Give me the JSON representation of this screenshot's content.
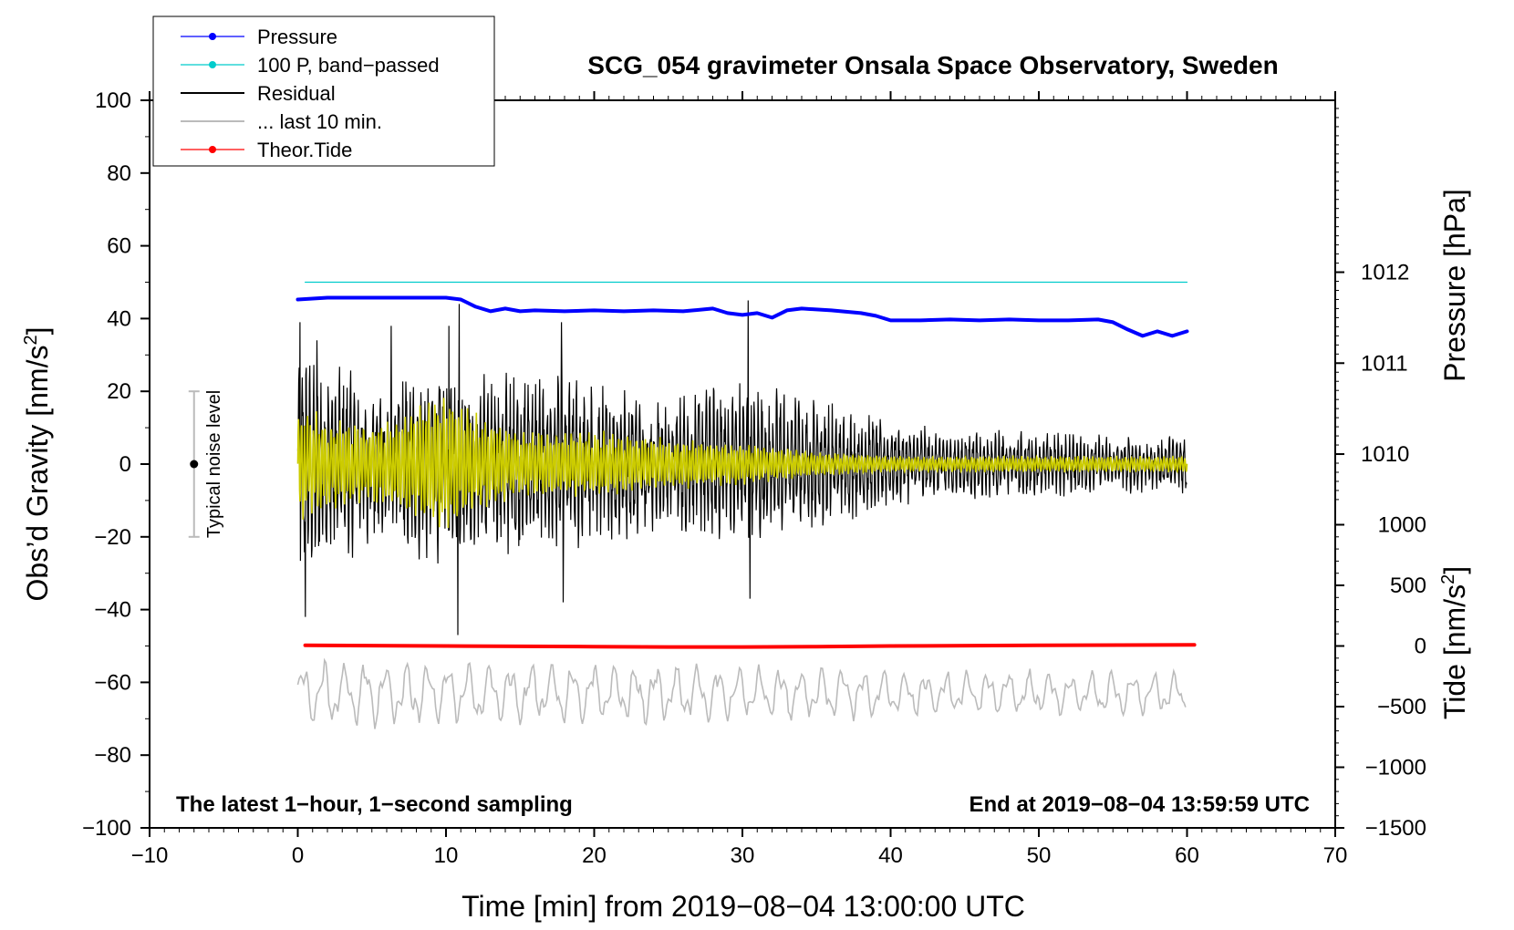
{
  "chart_data": {
    "type": "line",
    "title": "SCG_054 gravimeter Onsala Space Observatory, Sweden",
    "xlabel": "Time [min] from 2019−08−04 13:00:00 UTC",
    "ylabel_left_prefix": "Obs’d Gravity [nm/s",
    "ylabel_left_sup": "2",
    "ylabel_left_suffix": "]",
    "ylabel_right_pressure": "Pressure [hPa]",
    "ylabel_right_tide_prefix": "Tide [nm/s",
    "ylabel_right_tide_sup": "2",
    "ylabel_right_tide_suffix": "]",
    "xlim": [
      -10,
      70
    ],
    "ylim": [
      -100,
      100
    ],
    "pressure_ylim": [
      1005.89,
      1013.89
    ],
    "tide_ylim": [
      -1500,
      4500
    ],
    "x_ticks": [
      "−10",
      "0",
      "10",
      "20",
      "30",
      "40",
      "50",
      "60",
      "70"
    ],
    "x_tick_values": [
      -10,
      0,
      10,
      20,
      30,
      40,
      50,
      60,
      70
    ],
    "y_ticks": [
      "100",
      "80",
      "60",
      "40",
      "20",
      "0",
      "−20",
      "−40",
      "−60",
      "−80",
      "−100"
    ],
    "y_tick_values": [
      100,
      80,
      60,
      40,
      20,
      0,
      -20,
      -40,
      -60,
      -80,
      -100
    ],
    "pressure_ticks": [
      "1012",
      "1011",
      "1010"
    ],
    "pressure_tick_values": [
      1012,
      1011,
      1010
    ],
    "tide_ticks": [
      "1000",
      "500",
      "0",
      "−500",
      "−1000",
      "−1500"
    ],
    "tide_tick_values": [
      1000,
      500,
      0,
      -500,
      -1000,
      -1500
    ],
    "legend": [
      {
        "label": "Pressure",
        "color": "#0000ff",
        "marker": true
      },
      {
        "label": "100 P, band−passed",
        "color": "#00cccc",
        "marker": true
      },
      {
        "label": "Residual",
        "color": "#000000",
        "marker": false
      },
      {
        "label": "... last 10 min.",
        "color": "#bbbbbb",
        "marker": false
      },
      {
        "label": "Theor.Tide",
        "color": "#ff0000",
        "marker": true
      }
    ],
    "legend_position": "top-left",
    "note_left": "The latest 1−hour, 1−second sampling",
    "note_right": "End at 2019−08−04 13:59:59 UTC",
    "noise_level": {
      "label": "Typical noise level",
      "center": 0,
      "low": -20,
      "high": 20,
      "x": -7
    },
    "series": [
      {
        "name": "Pressure",
        "color": "#0000ff",
        "axis": "pressure",
        "x": [
          0,
          2,
          4,
          6,
          8,
          10,
          11,
          12,
          13,
          14,
          15,
          16,
          18,
          20,
          22,
          24,
          26,
          28,
          29,
          30,
          31,
          32,
          33,
          34,
          36,
          38,
          39,
          40,
          42,
          44,
          46,
          48,
          50,
          52,
          54,
          55,
          56,
          57,
          58,
          59,
          60
        ],
        "values": [
          1011.7,
          1011.72,
          1011.72,
          1011.72,
          1011.72,
          1011.72,
          1011.7,
          1011.62,
          1011.57,
          1011.6,
          1011.57,
          1011.58,
          1011.57,
          1011.58,
          1011.57,
          1011.58,
          1011.57,
          1011.6,
          1011.55,
          1011.53,
          1011.55,
          1011.5,
          1011.58,
          1011.6,
          1011.58,
          1011.55,
          1011.52,
          1011.47,
          1011.47,
          1011.48,
          1011.47,
          1011.48,
          1011.47,
          1011.47,
          1011.48,
          1011.45,
          1011.37,
          1011.3,
          1011.35,
          1011.3,
          1011.35
        ]
      },
      {
        "name": "100 P, band−passed",
        "color": "#00cccc",
        "axis": "gravity",
        "x": [
          0.5,
          60
        ],
        "values": [
          50,
          50
        ]
      },
      {
        "name": "Theor.Tide",
        "color": "#ff0000",
        "axis": "tide",
        "x": [
          0.5,
          10,
          20,
          25,
          30,
          35,
          40,
          50,
          60.5
        ],
        "values": [
          5,
          0,
          -5,
          -8,
          -8,
          -5,
          0,
          5,
          10
        ]
      }
    ],
    "residual_envelope": {
      "name": "Residual",
      "color": "#000000",
      "period_min": 0.25,
      "x": [
        0,
        5,
        10,
        15,
        20,
        25,
        30,
        35,
        40,
        45,
        50,
        55,
        60
      ],
      "amplitude": [
        26,
        20,
        24,
        22,
        20,
        16,
        20,
        16,
        10,
        8,
        8,
        7,
        7
      ]
    },
    "residual_spikes": [
      {
        "x": 0.15,
        "value": 39
      },
      {
        "x": 0.5,
        "value": -42
      },
      {
        "x": 1.3,
        "value": 34
      },
      {
        "x": 6.3,
        "value": 38
      },
      {
        "x": 10.2,
        "value": 38
      },
      {
        "x": 10.8,
        "value": -47
      },
      {
        "x": 10.9,
        "value": 44
      },
      {
        "x": 17.8,
        "value": 39
      },
      {
        "x": 17.9,
        "value": -38
      },
      {
        "x": 30.4,
        "value": 45
      },
      {
        "x": 30.5,
        "value": -37
      }
    ],
    "bandpassed_envelope": {
      "color": "#cccc00",
      "period_min": 0.2,
      "x": [
        0,
        3,
        6,
        10,
        12,
        15,
        20,
        25,
        30,
        35,
        40,
        50,
        60
      ],
      "amplitude": [
        14,
        10,
        10,
        17,
        12,
        8,
        8,
        6,
        5,
        3,
        2,
        2,
        2
      ]
    },
    "last10_envelope": {
      "name": "... last 10 min.",
      "color": "#bbbbbb",
      "period_min": 1.4,
      "offset": -63,
      "x": [
        0,
        15,
        30,
        45,
        60
      ],
      "amplitude": [
        6,
        6,
        5,
        4,
        4
      ]
    }
  }
}
